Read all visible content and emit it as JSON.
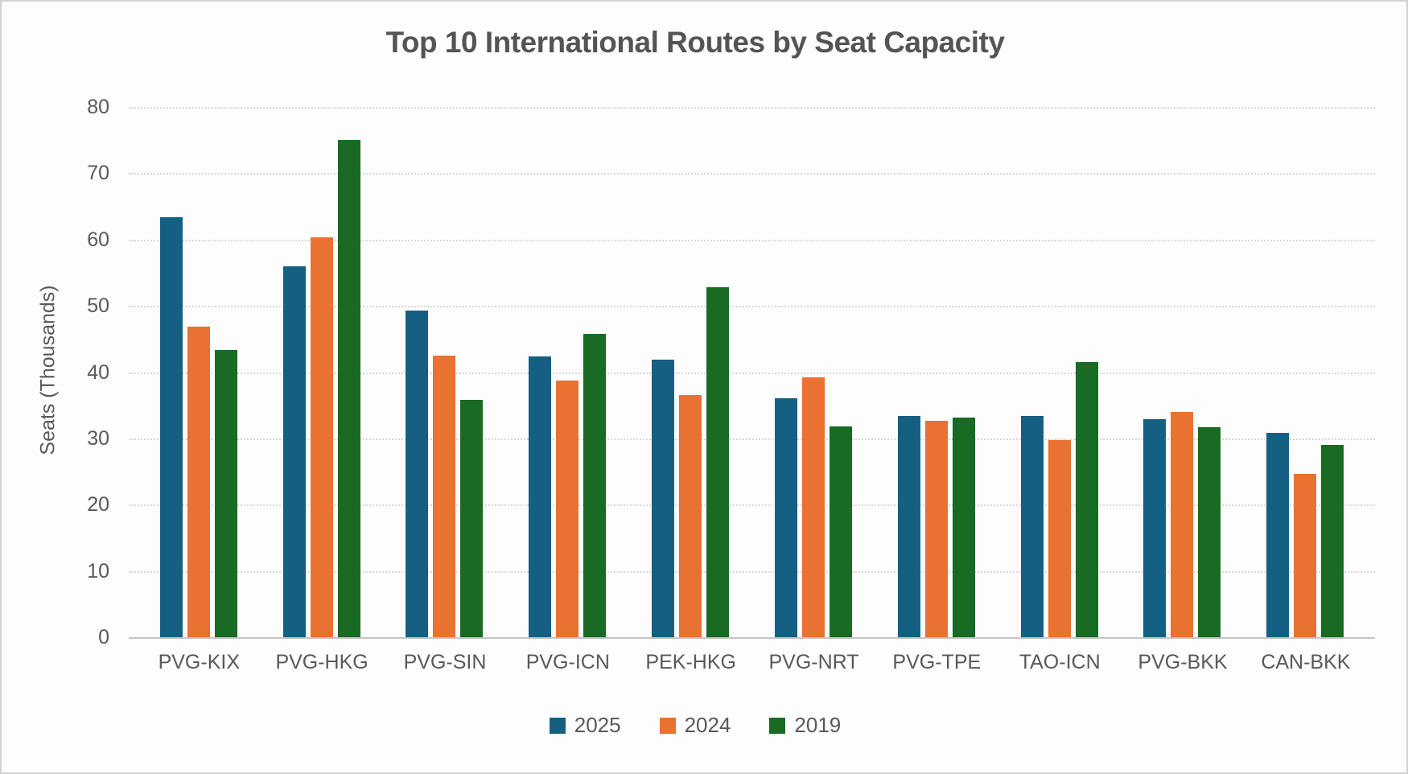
{
  "title": "Top 10 International Routes by Seat Capacity",
  "y_axis_title": "Seats (Thousands)",
  "colors": {
    "series_2025": "#156082",
    "series_2024": "#E97132",
    "series_2019": "#196B24",
    "text_gray": "#595959",
    "gridline": "#d8d8d8"
  },
  "chart_data": {
    "type": "bar",
    "title": "Top 10 International Routes by Seat Capacity",
    "xlabel": "",
    "ylabel": "Seats (Thousands)",
    "categories": [
      "PVG-KIX",
      "PVG-HKG",
      "PVG-SIN",
      "PVG-ICN",
      "PEK-HKG",
      "PVG-NRT",
      "PVG-TPE",
      "TAO-ICN",
      "PVG-BKK",
      "CAN-BKK"
    ],
    "series": [
      {
        "name": "2025",
        "color": "#156082",
        "values": [
          63.4,
          56.0,
          49.3,
          42.4,
          41.9,
          36.0,
          33.4,
          33.4,
          32.9,
          30.8
        ]
      },
      {
        "name": "2024",
        "color": "#E97132",
        "values": [
          46.9,
          60.4,
          42.5,
          38.7,
          36.5,
          39.2,
          32.7,
          29.8,
          34.0,
          24.6
        ]
      },
      {
        "name": "2019",
        "color": "#196B24",
        "values": [
          43.4,
          75.0,
          35.8,
          45.8,
          52.8,
          31.8,
          33.1,
          41.5,
          31.7,
          29.0
        ]
      }
    ],
    "ylim": [
      0,
      80
    ],
    "yticks": [
      0,
      10,
      20,
      30,
      40,
      50,
      60,
      70,
      80
    ],
    "grid": true,
    "legend_position": "bottom"
  }
}
